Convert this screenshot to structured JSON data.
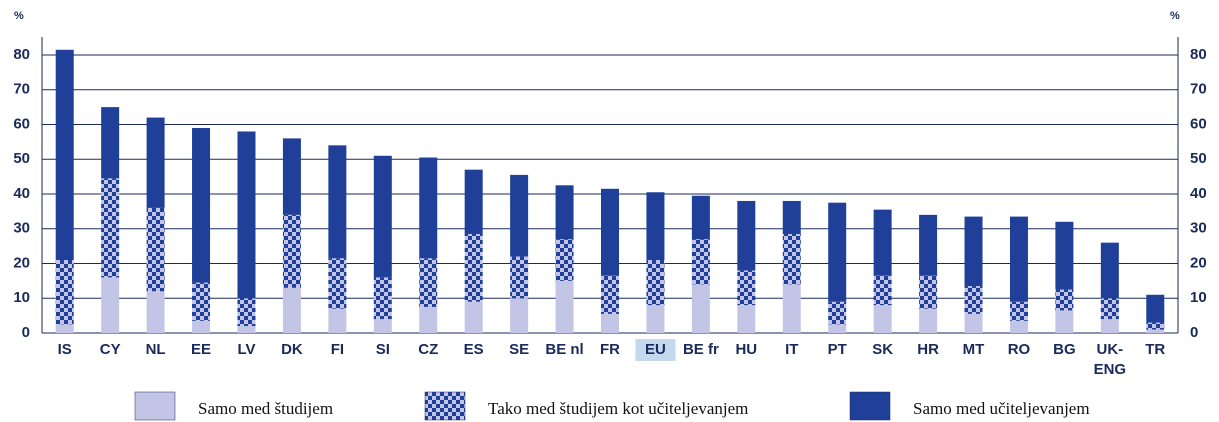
{
  "chart_data": {
    "type": "stacked_bar",
    "y_label": "%",
    "categories": [
      "IS",
      "CY",
      "NL",
      "EE",
      "LV",
      "DK",
      "FI",
      "SI",
      "CZ",
      "ES",
      "SE",
      "BE nl",
      "FR",
      "EU",
      "BE fr",
      "HU",
      "IT",
      "PT",
      "SK",
      "HR",
      "MT",
      "RO",
      "BG",
      "UK-ENG",
      "TR"
    ],
    "highlight": "EU",
    "series": [
      {
        "name": "Samo med študijem",
        "color": "#c3c5e7",
        "values": [
          2.5,
          16,
          12,
          3.5,
          2,
          13,
          7,
          4,
          7.5,
          9,
          10,
          15,
          5.5,
          8,
          14,
          8,
          14,
          2.5,
          8,
          7,
          5.5,
          3.5,
          6.5,
          4,
          1
        ]
      },
      {
        "name": "Tako med študijem kot učiteljevanjem",
        "color": "#1f3f99",
        "pattern": "checker",
        "values": [
          18.5,
          28.5,
          24,
          11,
          8,
          21,
          14.5,
          12,
          14,
          19.5,
          12,
          12,
          11,
          13,
          13,
          10,
          14.5,
          6.5,
          8.5,
          9.5,
          8,
          5.5,
          6,
          6,
          2
        ]
      },
      {
        "name": "Samo med učiteljevanjem",
        "color": "#1f3f99",
        "values": [
          60.5,
          20.5,
          26,
          44.5,
          48,
          22,
          32.5,
          35,
          29,
          18.5,
          23.5,
          15.5,
          25,
          19.5,
          12.5,
          20,
          9.5,
          28.5,
          19,
          17.5,
          20,
          24.5,
          19.5,
          16,
          8
        ]
      }
    ],
    "ylim": [
      0,
      80
    ],
    "yticks": [
      0,
      10,
      20,
      30,
      40,
      50,
      60,
      70,
      80
    ],
    "grid": true
  }
}
